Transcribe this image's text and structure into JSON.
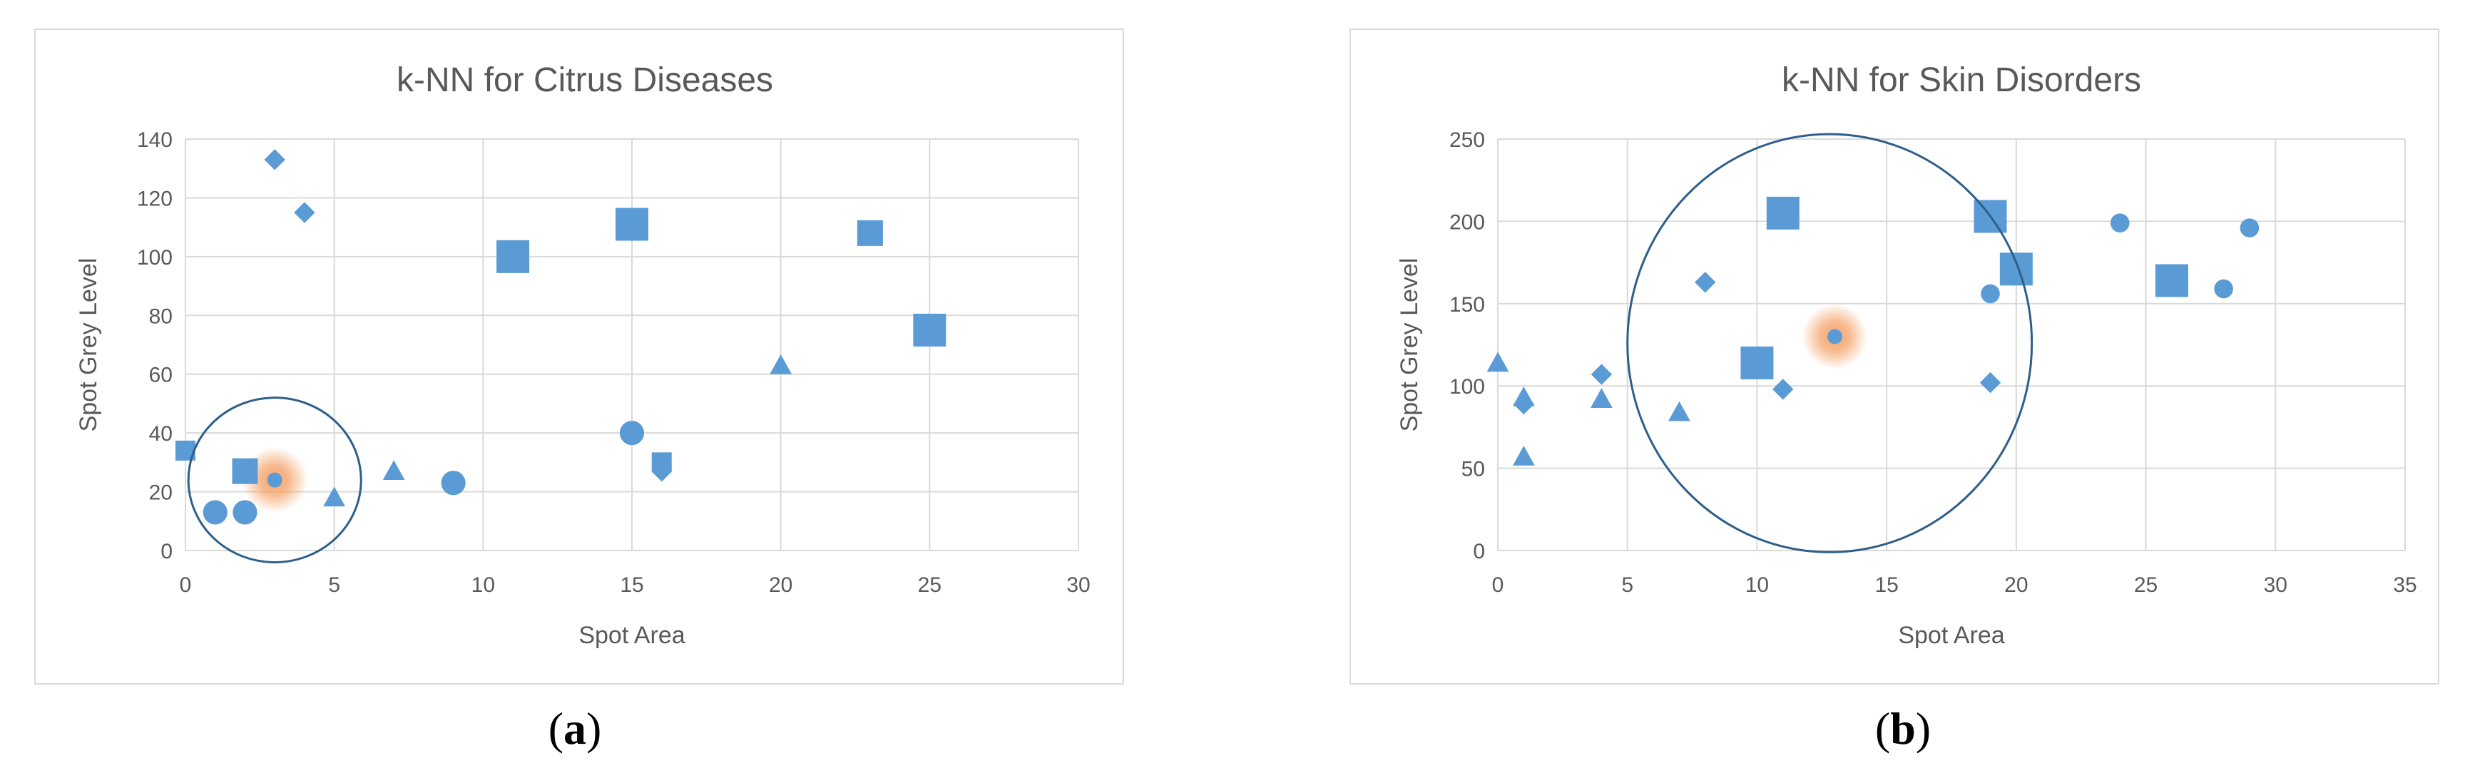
{
  "colors": {
    "marker": "#5b9bd5",
    "grid": "#d9d9d9",
    "circle": "#2e5f8a",
    "highlight": "#f4a46b",
    "text": "#595959"
  },
  "captions": {
    "a": {
      "open": "(",
      "letter": "a",
      "close": ")"
    },
    "b": {
      "open": "(",
      "letter": "b",
      "close": ")"
    }
  },
  "chart_data": [
    {
      "type": "scatter",
      "title": "k-NN for Citrus Diseases",
      "xlabel": "Spot Area",
      "ylabel": "Spot Grey Level",
      "xlim": [
        0,
        30
      ],
      "ylim": [
        0,
        140
      ],
      "xticks": [
        0,
        5,
        10,
        15,
        20,
        25,
        30
      ],
      "yticks": [
        0,
        20,
        40,
        60,
        80,
        100,
        120,
        140
      ],
      "grid": "major gridlines",
      "legend": "none",
      "points": [
        {
          "x": 3,
          "y": 133,
          "marker": "diamond",
          "size": "small"
        },
        {
          "x": 4,
          "y": 115,
          "marker": "diamond",
          "size": "small"
        },
        {
          "x": 11,
          "y": 100,
          "marker": "square",
          "size": "large"
        },
        {
          "x": 15,
          "y": 111,
          "marker": "square",
          "size": "large"
        },
        {
          "x": 23,
          "y": 108,
          "marker": "square",
          "size": "medium"
        },
        {
          "x": 25,
          "y": 75,
          "marker": "square",
          "size": "large"
        },
        {
          "x": 20,
          "y": 63,
          "marker": "triangle",
          "size": "small"
        },
        {
          "x": 15,
          "y": 40,
          "marker": "circle",
          "size": "medium"
        },
        {
          "x": 16,
          "y": 30,
          "marker": "square",
          "size": "small"
        },
        {
          "x": 16,
          "y": 27,
          "marker": "diamond",
          "size": "small"
        },
        {
          "x": 0,
          "y": 34,
          "marker": "square",
          "size": "small"
        },
        {
          "x": 2,
          "y": 27,
          "marker": "square",
          "size": "medium"
        },
        {
          "x": 7,
          "y": 27,
          "marker": "triangle",
          "size": "small"
        },
        {
          "x": 9,
          "y": 23,
          "marker": "circle",
          "size": "medium"
        },
        {
          "x": 5,
          "y": 18,
          "marker": "triangle",
          "size": "small"
        },
        {
          "x": 1,
          "y": 13,
          "marker": "circle",
          "size": "medium"
        },
        {
          "x": 2,
          "y": 13,
          "marker": "circle",
          "size": "medium"
        },
        {
          "x": 3,
          "y": 24,
          "marker": "circle",
          "size": "tiny"
        }
      ],
      "query_point": {
        "x": 3,
        "y": 24
      },
      "neighborhood": {
        "center": [
          3,
          24
        ],
        "radius_x": 2.9,
        "radius_y": 28
      }
    },
    {
      "type": "scatter",
      "title": "k-NN for Skin Disorders",
      "xlabel": "Spot Area",
      "ylabel": "Spot Grey Level",
      "xlim": [
        0,
        35
      ],
      "ylim": [
        0,
        250
      ],
      "xticks": [
        0,
        5,
        10,
        15,
        20,
        25,
        30,
        35
      ],
      "yticks": [
        0,
        50,
        100,
        150,
        200,
        250
      ],
      "grid": "major gridlines",
      "legend": "none",
      "points": [
        {
          "x": 11,
          "y": 205,
          "marker": "square",
          "size": "large"
        },
        {
          "x": 19,
          "y": 203,
          "marker": "square",
          "size": "large"
        },
        {
          "x": 20,
          "y": 171,
          "marker": "square",
          "size": "large"
        },
        {
          "x": 26,
          "y": 164,
          "marker": "square",
          "size": "large"
        },
        {
          "x": 10,
          "y": 114,
          "marker": "square",
          "size": "large"
        },
        {
          "x": 24,
          "y": 199,
          "marker": "circle",
          "size": "small"
        },
        {
          "x": 29,
          "y": 196,
          "marker": "circle",
          "size": "small"
        },
        {
          "x": 19,
          "y": 156,
          "marker": "circle",
          "size": "small"
        },
        {
          "x": 28,
          "y": 159,
          "marker": "circle",
          "size": "small"
        },
        {
          "x": 8,
          "y": 163,
          "marker": "diamond",
          "size": "small"
        },
        {
          "x": 4,
          "y": 107,
          "marker": "diamond",
          "size": "small"
        },
        {
          "x": 11,
          "y": 98,
          "marker": "diamond",
          "size": "small"
        },
        {
          "x": 19,
          "y": 102,
          "marker": "diamond",
          "size": "small"
        },
        {
          "x": 1,
          "y": 89,
          "marker": "diamond",
          "size": "small"
        },
        {
          "x": 0,
          "y": 114,
          "marker": "triangle",
          "size": "small"
        },
        {
          "x": 1,
          "y": 93,
          "marker": "triangle",
          "size": "small"
        },
        {
          "x": 4,
          "y": 92,
          "marker": "triangle",
          "size": "small"
        },
        {
          "x": 7,
          "y": 84,
          "marker": "triangle",
          "size": "small"
        },
        {
          "x": 1,
          "y": 57,
          "marker": "triangle",
          "size": "small"
        },
        {
          "x": 13,
          "y": 130,
          "marker": "circle",
          "size": "tiny"
        }
      ],
      "query_point": {
        "x": 13,
        "y": 130
      },
      "neighborhood": {
        "center": [
          12.8,
          126
        ],
        "radius_x": 7.8,
        "radius_y": 127
      }
    }
  ]
}
